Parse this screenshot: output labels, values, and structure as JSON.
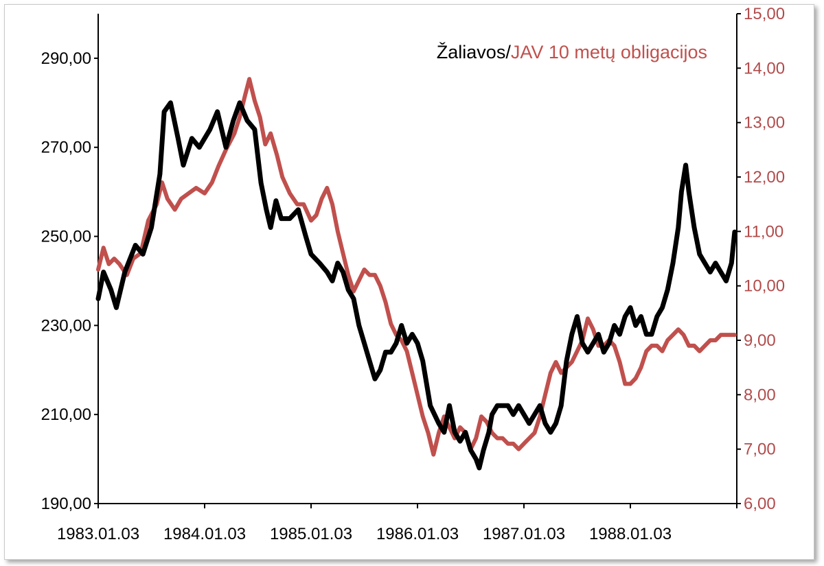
{
  "chart_data": {
    "type": "line",
    "title_parts": [
      "Žaliavos",
      "/",
      "JAV 10 metų obligacijos"
    ],
    "colors": {
      "commodities": "#000000",
      "bonds": "#c0504d",
      "right_axis": "#b24b4b"
    },
    "y_left": {
      "ticks": [
        "190,00",
        "210,00",
        "230,00",
        "250,00",
        "270,00",
        "290,00"
      ],
      "range": [
        190,
        300
      ]
    },
    "y_right": {
      "ticks": [
        "6,00",
        "7,00",
        "8,00",
        "9,00",
        "10,00",
        "11,00",
        "12,00",
        "13,00",
        "14,00",
        "15,00"
      ],
      "range": [
        6,
        15
      ]
    },
    "x_ticks": [
      "1983.01.03",
      "1984.01.03",
      "1985.01.03",
      "1986.01.03",
      "1987.01.03",
      "1988.01.03"
    ],
    "x_range": [
      1983.0,
      1989.0
    ],
    "series": [
      {
        "name": "Žaliavos",
        "axis": "left",
        "points": [
          [
            1983.0,
            236
          ],
          [
            1983.05,
            242
          ],
          [
            1983.12,
            238
          ],
          [
            1983.17,
            234
          ],
          [
            1983.25,
            242
          ],
          [
            1983.35,
            248
          ],
          [
            1983.42,
            246
          ],
          [
            1983.5,
            252
          ],
          [
            1983.58,
            264
          ],
          [
            1983.62,
            278
          ],
          [
            1983.68,
            280
          ],
          [
            1983.75,
            272
          ],
          [
            1983.8,
            266
          ],
          [
            1983.88,
            272
          ],
          [
            1983.95,
            270
          ],
          [
            1984.0,
            272
          ],
          [
            1984.05,
            274
          ],
          [
            1984.12,
            278
          ],
          [
            1984.2,
            270
          ],
          [
            1984.27,
            276
          ],
          [
            1984.33,
            280
          ],
          [
            1984.4,
            276
          ],
          [
            1984.47,
            274
          ],
          [
            1984.53,
            262
          ],
          [
            1984.58,
            256
          ],
          [
            1984.62,
            252
          ],
          [
            1984.67,
            258
          ],
          [
            1984.72,
            254
          ],
          [
            1984.8,
            254
          ],
          [
            1984.88,
            256
          ],
          [
            1984.95,
            250
          ],
          [
            1985.0,
            246
          ],
          [
            1985.08,
            244
          ],
          [
            1985.15,
            242
          ],
          [
            1985.2,
            240
          ],
          [
            1985.25,
            244
          ],
          [
            1985.3,
            242
          ],
          [
            1985.35,
            238
          ],
          [
            1985.4,
            236
          ],
          [
            1985.45,
            230
          ],
          [
            1985.5,
            226
          ],
          [
            1985.55,
            222
          ],
          [
            1985.6,
            218
          ],
          [
            1985.65,
            220
          ],
          [
            1985.7,
            224
          ],
          [
            1985.75,
            224
          ],
          [
            1985.8,
            226
          ],
          [
            1985.85,
            230
          ],
          [
            1985.9,
            226
          ],
          [
            1985.95,
            228
          ],
          [
            1986.0,
            226
          ],
          [
            1986.05,
            222
          ],
          [
            1986.12,
            212
          ],
          [
            1986.2,
            208
          ],
          [
            1986.25,
            206
          ],
          [
            1986.3,
            212
          ],
          [
            1986.35,
            206
          ],
          [
            1986.4,
            204
          ],
          [
            1986.45,
            206
          ],
          [
            1986.5,
            202
          ],
          [
            1986.55,
            200
          ],
          [
            1986.58,
            198
          ],
          [
            1986.62,
            202
          ],
          [
            1986.67,
            206
          ],
          [
            1986.7,
            210
          ],
          [
            1986.75,
            212
          ],
          [
            1986.8,
            212
          ],
          [
            1986.85,
            212
          ],
          [
            1986.9,
            210
          ],
          [
            1986.95,
            212
          ],
          [
            1987.0,
            210
          ],
          [
            1987.05,
            208
          ],
          [
            1987.1,
            210
          ],
          [
            1987.15,
            212
          ],
          [
            1987.2,
            208
          ],
          [
            1987.25,
            206
          ],
          [
            1987.3,
            208
          ],
          [
            1987.35,
            212
          ],
          [
            1987.4,
            222
          ],
          [
            1987.45,
            228
          ],
          [
            1987.5,
            232
          ],
          [
            1987.55,
            226
          ],
          [
            1987.6,
            224
          ],
          [
            1987.65,
            226
          ],
          [
            1987.7,
            228
          ],
          [
            1987.75,
            224
          ],
          [
            1987.8,
            226
          ],
          [
            1987.85,
            230
          ],
          [
            1987.9,
            228
          ],
          [
            1987.95,
            232
          ],
          [
            1988.0,
            234
          ],
          [
            1988.05,
            230
          ],
          [
            1988.1,
            232
          ],
          [
            1988.15,
            228
          ],
          [
            1988.2,
            228
          ],
          [
            1988.25,
            232
          ],
          [
            1988.3,
            234
          ],
          [
            1988.35,
            238
          ],
          [
            1988.4,
            244
          ],
          [
            1988.45,
            252
          ],
          [
            1988.48,
            260
          ],
          [
            1988.52,
            266
          ],
          [
            1988.55,
            260
          ],
          [
            1988.6,
            252
          ],
          [
            1988.65,
            246
          ],
          [
            1988.7,
            244
          ],
          [
            1988.75,
            242
          ],
          [
            1988.8,
            244
          ],
          [
            1988.85,
            242
          ],
          [
            1988.9,
            240
          ],
          [
            1988.95,
            244
          ],
          [
            1988.98,
            251
          ]
        ]
      },
      {
        "name": "JAV 10 metų obligacijos",
        "axis": "right",
        "points": [
          [
            1983.0,
            10.3
          ],
          [
            1983.05,
            10.7
          ],
          [
            1983.1,
            10.4
          ],
          [
            1983.15,
            10.5
          ],
          [
            1983.2,
            10.4
          ],
          [
            1983.27,
            10.2
          ],
          [
            1983.33,
            10.5
          ],
          [
            1983.4,
            10.6
          ],
          [
            1983.47,
            11.2
          ],
          [
            1983.55,
            11.5
          ],
          [
            1983.6,
            11.9
          ],
          [
            1983.65,
            11.6
          ],
          [
            1983.72,
            11.4
          ],
          [
            1983.78,
            11.6
          ],
          [
            1983.85,
            11.7
          ],
          [
            1983.92,
            11.8
          ],
          [
            1984.0,
            11.7
          ],
          [
            1984.07,
            11.9
          ],
          [
            1984.13,
            12.2
          ],
          [
            1984.2,
            12.5
          ],
          [
            1984.28,
            12.8
          ],
          [
            1984.33,
            13.1
          ],
          [
            1984.38,
            13.5
          ],
          [
            1984.42,
            13.8
          ],
          [
            1984.47,
            13.4
          ],
          [
            1984.52,
            13.1
          ],
          [
            1984.57,
            12.6
          ],
          [
            1984.62,
            12.8
          ],
          [
            1984.68,
            12.4
          ],
          [
            1984.73,
            12.0
          ],
          [
            1984.8,
            11.7
          ],
          [
            1984.87,
            11.5
          ],
          [
            1984.93,
            11.5
          ],
          [
            1985.0,
            11.2
          ],
          [
            1985.05,
            11.3
          ],
          [
            1985.1,
            11.6
          ],
          [
            1985.15,
            11.8
          ],
          [
            1985.2,
            11.5
          ],
          [
            1985.25,
            11.0
          ],
          [
            1985.3,
            10.6
          ],
          [
            1985.35,
            10.2
          ],
          [
            1985.4,
            9.9
          ],
          [
            1985.45,
            10.1
          ],
          [
            1985.5,
            10.3
          ],
          [
            1985.55,
            10.2
          ],
          [
            1985.6,
            10.2
          ],
          [
            1985.65,
            10.0
          ],
          [
            1985.7,
            9.7
          ],
          [
            1985.75,
            9.3
          ],
          [
            1985.8,
            9.1
          ],
          [
            1985.85,
            9.0
          ],
          [
            1985.9,
            8.8
          ],
          [
            1985.95,
            8.4
          ],
          [
            1986.0,
            8.0
          ],
          [
            1986.05,
            7.6
          ],
          [
            1986.1,
            7.3
          ],
          [
            1986.15,
            6.9
          ],
          [
            1986.2,
            7.3
          ],
          [
            1986.25,
            7.6
          ],
          [
            1986.3,
            7.4
          ],
          [
            1986.35,
            7.2
          ],
          [
            1986.4,
            7.4
          ],
          [
            1986.45,
            7.3
          ],
          [
            1986.5,
            7.0
          ],
          [
            1986.55,
            7.2
          ],
          [
            1986.6,
            7.6
          ],
          [
            1986.65,
            7.5
          ],
          [
            1986.7,
            7.3
          ],
          [
            1986.75,
            7.2
          ],
          [
            1986.8,
            7.2
          ],
          [
            1986.85,
            7.1
          ],
          [
            1986.9,
            7.1
          ],
          [
            1986.95,
            7.0
          ],
          [
            1987.0,
            7.1
          ],
          [
            1987.05,
            7.2
          ],
          [
            1987.1,
            7.3
          ],
          [
            1987.15,
            7.6
          ],
          [
            1987.2,
            8.0
          ],
          [
            1987.25,
            8.4
          ],
          [
            1987.3,
            8.6
          ],
          [
            1987.35,
            8.4
          ],
          [
            1987.4,
            8.5
          ],
          [
            1987.45,
            8.6
          ],
          [
            1987.5,
            8.8
          ],
          [
            1987.55,
            9.0
          ],
          [
            1987.6,
            9.4
          ],
          [
            1987.65,
            9.2
          ],
          [
            1987.7,
            8.9
          ],
          [
            1987.75,
            8.9
          ],
          [
            1987.8,
            9.0
          ],
          [
            1987.85,
            8.9
          ],
          [
            1987.9,
            8.6
          ],
          [
            1987.95,
            8.2
          ],
          [
            1988.0,
            8.2
          ],
          [
            1988.05,
            8.3
          ],
          [
            1988.1,
            8.5
          ],
          [
            1988.15,
            8.8
          ],
          [
            1988.2,
            8.9
          ],
          [
            1988.25,
            8.9
          ],
          [
            1988.3,
            8.8
          ],
          [
            1988.35,
            9.0
          ],
          [
            1988.4,
            9.1
          ],
          [
            1988.45,
            9.2
          ],
          [
            1988.5,
            9.1
          ],
          [
            1988.55,
            8.9
          ],
          [
            1988.6,
            8.9
          ],
          [
            1988.65,
            8.8
          ],
          [
            1988.7,
            8.9
          ],
          [
            1988.75,
            9.0
          ],
          [
            1988.8,
            9.0
          ],
          [
            1988.85,
            9.1
          ],
          [
            1988.9,
            9.1
          ],
          [
            1988.95,
            9.1
          ],
          [
            1988.98,
            9.1
          ]
        ]
      }
    ]
  }
}
